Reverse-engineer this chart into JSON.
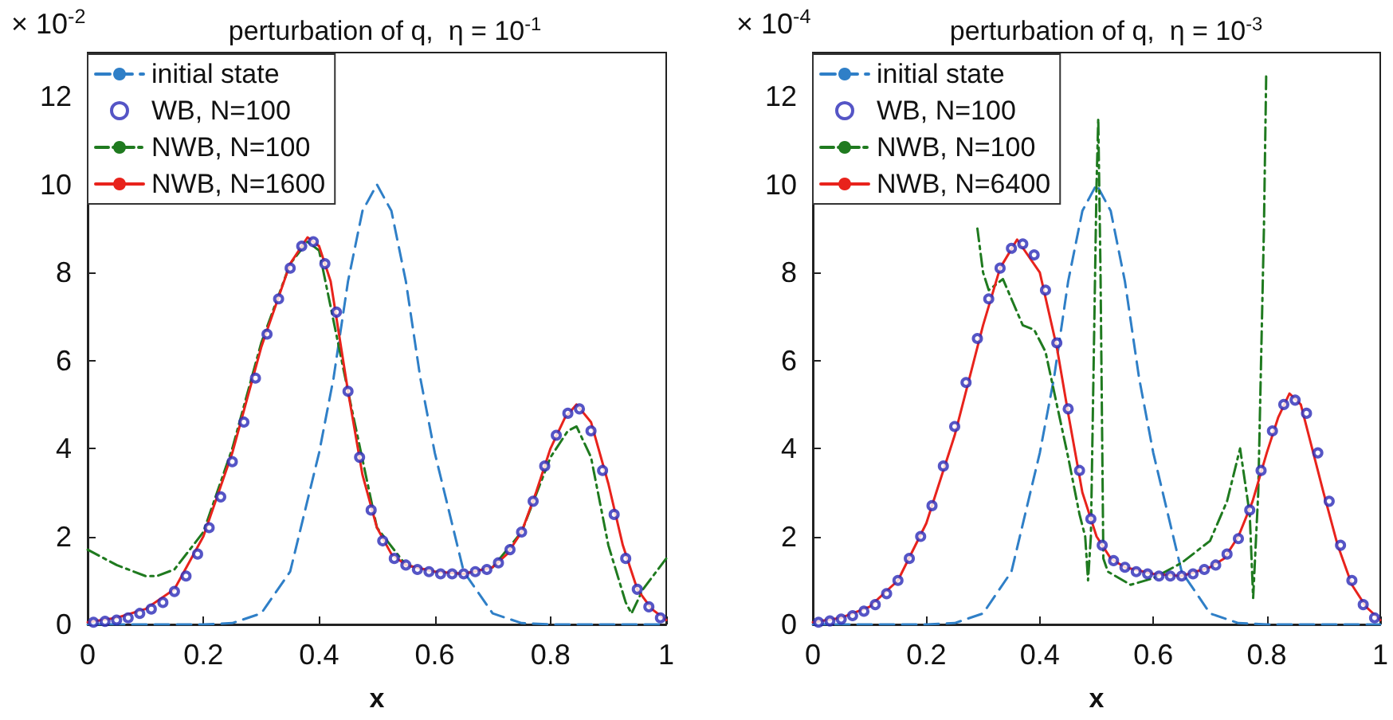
{
  "chart_data": [
    {
      "type": "line",
      "title": "perturbation of q,  η = 10$^{-1}$",
      "xlabel": "x",
      "annotations": [
        "× 10$^{-2}$"
      ],
      "xlim": [
        0,
        1
      ],
      "xticks": [
        0,
        0.2,
        0.4,
        0.6,
        0.8,
        1
      ],
      "ylim": [
        0,
        13
      ],
      "yticks": [
        0,
        2,
        4,
        6,
        8,
        10,
        12
      ],
      "grid": false,
      "legend": "top left",
      "series": [
        {
          "name": "initial state",
          "type": "line",
          "color": "#2f7fc7",
          "line_style": "dashed",
          "marker": "none",
          "x": [
            0,
            0.2,
            0.25,
            0.3,
            0.35,
            0.4,
            0.425,
            0.45,
            0.475,
            0.5,
            0.525,
            0.55,
            0.575,
            0.6,
            0.65,
            0.7,
            0.75,
            0.8,
            1
          ],
          "values": [
            0,
            0,
            0.03,
            0.25,
            1.2,
            3.9,
            5.6,
            7.8,
            9.4,
            10,
            9.4,
            7.8,
            5.6,
            3.9,
            1.2,
            0.25,
            0.03,
            0,
            0
          ]
        },
        {
          "name": "WB, N=100",
          "type": "scatter",
          "color": "#2a2ab8",
          "marker": "circle",
          "x": [
            0.01,
            0.03,
            0.05,
            0.07,
            0.09,
            0.11,
            0.13,
            0.15,
            0.17,
            0.19,
            0.21,
            0.23,
            0.25,
            0.27,
            0.29,
            0.31,
            0.33,
            0.35,
            0.37,
            0.39,
            0.41,
            0.43,
            0.45,
            0.47,
            0.49,
            0.51,
            0.53,
            0.55,
            0.57,
            0.59,
            0.61,
            0.63,
            0.65,
            0.67,
            0.69,
            0.71,
            0.73,
            0.75,
            0.77,
            0.79,
            0.81,
            0.83,
            0.85,
            0.87,
            0.89,
            0.91,
            0.93,
            0.95,
            0.97,
            0.99
          ],
          "values": [
            0.05,
            0.07,
            0.1,
            0.15,
            0.25,
            0.35,
            0.5,
            0.75,
            1.1,
            1.6,
            2.2,
            2.9,
            3.7,
            4.6,
            5.6,
            6.6,
            7.4,
            8.1,
            8.6,
            8.7,
            8.2,
            7.1,
            5.3,
            3.8,
            2.6,
            1.9,
            1.5,
            1.35,
            1.25,
            1.2,
            1.15,
            1.15,
            1.15,
            1.2,
            1.25,
            1.4,
            1.7,
            2.1,
            2.8,
            3.6,
            4.3,
            4.8,
            4.9,
            4.4,
            3.5,
            2.5,
            1.5,
            0.8,
            0.4,
            0.15
          ]
        },
        {
          "name": "NWB, N=100",
          "type": "line",
          "color": "#1f7a1f",
          "line_style": "dashdot",
          "marker": "none",
          "x": [
            0,
            0.05,
            0.1,
            0.12,
            0.15,
            0.2,
            0.25,
            0.3,
            0.35,
            0.38,
            0.4,
            0.45,
            0.5,
            0.55,
            0.6,
            0.65,
            0.7,
            0.75,
            0.8,
            0.83,
            0.845,
            0.87,
            0.9,
            0.93,
            0.94,
            0.96,
            1
          ],
          "values": [
            1.7,
            1.35,
            1.1,
            1.1,
            1.25,
            2.1,
            4,
            6.4,
            8.2,
            8.7,
            8.5,
            5.3,
            2.2,
            1.35,
            1.2,
            1.15,
            1.3,
            2.1,
            3.8,
            4.4,
            4.5,
            3.8,
            1.8,
            0.5,
            0.25,
            0.8,
            1.5
          ]
        },
        {
          "name": "NWB, N=1600",
          "type": "line",
          "color": "#e8231c",
          "line_style": "solid",
          "marker": "none",
          "x": [
            0,
            0.05,
            0.1,
            0.15,
            0.2,
            0.25,
            0.3,
            0.35,
            0.38,
            0.4,
            0.42,
            0.45,
            0.475,
            0.5,
            0.525,
            0.55,
            0.6,
            0.65,
            0.7,
            0.725,
            0.75,
            0.775,
            0.8,
            0.825,
            0.845,
            0.87,
            0.9,
            0.925,
            0.95,
            0.975,
            1
          ],
          "values": [
            0.05,
            0.15,
            0.35,
            0.8,
            2,
            3.9,
            6.3,
            8.2,
            8.8,
            8.6,
            7.8,
            5.3,
            3.4,
            2.2,
            1.6,
            1.35,
            1.2,
            1.15,
            1.3,
            1.6,
            2.1,
            3,
            4,
            4.7,
            5,
            4.6,
            3.2,
            1.8,
            0.8,
            0.35,
            0.1
          ]
        }
      ]
    },
    {
      "type": "line",
      "title": "perturbation of q,  η = 10$^{-3}$",
      "xlabel": "x",
      "annotations": [
        "× 10$^{-4}$"
      ],
      "xlim": [
        0,
        1
      ],
      "xticks": [
        0,
        0.2,
        0.4,
        0.6,
        0.8,
        1
      ],
      "ylim": [
        0,
        13
      ],
      "yticks": [
        0,
        2,
        4,
        6,
        8,
        10,
        12
      ],
      "grid": false,
      "legend": "top left",
      "series": [
        {
          "name": "initial state",
          "type": "line",
          "color": "#2f7fc7",
          "line_style": "dashed",
          "marker": "none",
          "x": [
            0,
            0.2,
            0.25,
            0.3,
            0.35,
            0.4,
            0.425,
            0.45,
            0.475,
            0.5,
            0.525,
            0.55,
            0.575,
            0.6,
            0.65,
            0.7,
            0.75,
            0.8,
            1
          ],
          "values": [
            0,
            0,
            0.03,
            0.25,
            1.2,
            3.9,
            5.6,
            7.8,
            9.4,
            10,
            9.4,
            7.8,
            5.6,
            3.9,
            1.2,
            0.25,
            0.03,
            0,
            0
          ]
        },
        {
          "name": "WB, N=100",
          "type": "scatter",
          "color": "#2a2ab8",
          "marker": "circle",
          "x": [
            0.01,
            0.03,
            0.05,
            0.07,
            0.09,
            0.11,
            0.13,
            0.15,
            0.17,
            0.19,
            0.21,
            0.23,
            0.25,
            0.27,
            0.29,
            0.31,
            0.33,
            0.35,
            0.37,
            0.39,
            0.41,
            0.43,
            0.45,
            0.47,
            0.49,
            0.51,
            0.53,
            0.55,
            0.57,
            0.59,
            0.61,
            0.63,
            0.65,
            0.67,
            0.69,
            0.71,
            0.73,
            0.75,
            0.77,
            0.79,
            0.81,
            0.83,
            0.85,
            0.87,
            0.89,
            0.91,
            0.93,
            0.95,
            0.97,
            0.99
          ],
          "values": [
            0.05,
            0.08,
            0.12,
            0.2,
            0.3,
            0.45,
            0.7,
            1,
            1.5,
            2,
            2.7,
            3.6,
            4.5,
            5.5,
            6.5,
            7.4,
            8.1,
            8.55,
            8.65,
            8.4,
            7.6,
            6.4,
            4.9,
            3.5,
            2.4,
            1.8,
            1.45,
            1.3,
            1.2,
            1.15,
            1.1,
            1.1,
            1.1,
            1.15,
            1.25,
            1.35,
            1.6,
            1.95,
            2.6,
            3.5,
            4.4,
            5,
            5.1,
            4.8,
            3.9,
            2.8,
            1.8,
            1,
            0.45,
            0.15
          ]
        },
        {
          "name": "NWB, N=100",
          "type": "line",
          "color": "#1f7a1f",
          "line_style": "dashdot",
          "marker": "none",
          "x": [
            0.29,
            0.3,
            0.31,
            0.335,
            0.35,
            0.37,
            0.39,
            0.41,
            0.43,
            0.45,
            0.47,
            0.48,
            0.485,
            0.49,
            0.5,
            0.503,
            0.507,
            0.512,
            0.52,
            0.56,
            0.6,
            0.65,
            0.7,
            0.73,
            0.753,
            0.77,
            0.776,
            0.785,
            0.795,
            0.799
          ],
          "values": [
            9,
            8,
            7.6,
            7.85,
            7.4,
            6.8,
            6.7,
            6.2,
            5,
            3.8,
            2.5,
            2,
            1,
            2,
            10,
            11.5,
            8,
            1.5,
            1.2,
            0.9,
            1.05,
            1.4,
            1.9,
            2.8,
            4,
            2.5,
            0.6,
            3,
            9,
            12.5
          ]
        },
        {
          "name": "NWB, N=6400",
          "type": "line",
          "color": "#e8231c",
          "line_style": "solid",
          "marker": "none",
          "x": [
            0,
            0.05,
            0.1,
            0.15,
            0.2,
            0.25,
            0.3,
            0.33,
            0.36,
            0.4,
            0.43,
            0.45,
            0.475,
            0.5,
            0.525,
            0.55,
            0.6,
            0.65,
            0.7,
            0.725,
            0.75,
            0.775,
            0.8,
            0.82,
            0.84,
            0.86,
            0.88,
            0.9,
            0.925,
            0.95,
            0.975,
            1
          ],
          "values": [
            0.05,
            0.15,
            0.4,
            1,
            2.3,
            4.3,
            6.8,
            8.1,
            8.75,
            8,
            6.3,
            4.8,
            3,
            2,
            1.5,
            1.3,
            1.15,
            1.1,
            1.3,
            1.5,
            2,
            2.8,
            3.9,
            4.7,
            5.25,
            5,
            4,
            3,
            1.8,
            0.9,
            0.4,
            0.1
          ]
        }
      ]
    }
  ]
}
